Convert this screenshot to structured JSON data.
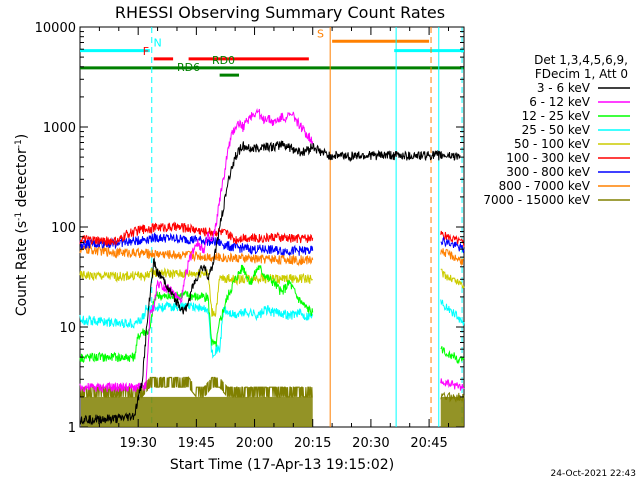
{
  "chart_data": {
    "type": "line",
    "title": "RHESSI Observing Summary Count Rates",
    "xlabel": "Start Time (17-Apr-13 19:15:02)",
    "ylabel_main": "Count Rate (s",
    "ylabel_sup1": "-1",
    "ylabel_mid": " detector",
    "ylabel_sup2": "-1",
    "ylabel_end": ")",
    "yscale": "log",
    "ylim": [
      1,
      10000
    ],
    "xlim_min": [
      0,
      99
    ],
    "ytick_values": [
      1,
      10,
      100,
      1000,
      10000
    ],
    "ytick_labels": [
      "1",
      "10",
      "100",
      "1000",
      "10000"
    ],
    "xtick_values_min": [
      15,
      30,
      45,
      60,
      75,
      90
    ],
    "xtick_labels": [
      "19:30",
      "19:45",
      "20:00",
      "20:15",
      "20:30",
      "20:45"
    ],
    "legend_header": [
      "Det 1,3,4,5,6,9,",
      "FDecim 1, Att 0"
    ],
    "timestamp": "24-Oct-2021 22:43",
    "series": [
      {
        "name": "3 - 6 keV",
        "color": "#000000",
        "x": [
          0,
          10,
          14,
          16,
          17,
          18,
          19,
          20,
          22,
          24,
          26,
          27,
          28,
          29,
          30,
          31,
          32,
          33,
          34,
          35,
          36,
          37,
          38,
          39,
          40,
          41,
          42,
          44,
          46,
          48,
          50,
          52,
          55,
          57,
          58,
          59,
          60,
          62,
          64,
          66,
          68,
          70,
          72,
          73,
          74,
          75,
          76,
          77,
          78,
          79,
          80,
          81,
          82,
          84,
          86,
          88,
          90,
          92,
          94,
          96,
          98
        ],
        "y": [
          1.2,
          1.2,
          1.3,
          2.8,
          8,
          20,
          45,
          35,
          28,
          20,
          16,
          14,
          18,
          25,
          30,
          38,
          40,
          32,
          38,
          60,
          100,
          160,
          260,
          380,
          500,
          580,
          650,
          600,
          620,
          650,
          620,
          680,
          600,
          560,
          580,
          600,
          640,
          560,
          520,
          520,
          520,
          520,
          520,
          520,
          520,
          520,
          520,
          520,
          520,
          520,
          520,
          520,
          520,
          520,
          520,
          520,
          520,
          520,
          520,
          520,
          520
        ],
        "seg": [
          [
            0,
            14
          ],
          [
            14,
            42
          ],
          [
            42,
            61
          ]
        ]
      },
      {
        "name": "6 - 12 keV",
        "color": "#ff00ff",
        "x": [
          0,
          10,
          17,
          18,
          19,
          20,
          22,
          24,
          26,
          28,
          30,
          32,
          33,
          34,
          35,
          36,
          37,
          38,
          39,
          40,
          41,
          42,
          44,
          46,
          47,
          48,
          50,
          52,
          55,
          57,
          58,
          59,
          60
        ],
        "y": [
          2.5,
          2.5,
          2.5,
          13,
          16,
          28,
          25,
          22,
          18,
          45,
          70,
          60,
          80,
          70,
          100,
          190,
          300,
          550,
          800,
          1000,
          1100,
          1000,
          1300,
          1450,
          1150,
          1250,
          1100,
          1250,
          1300,
          1000,
          900,
          800,
          720
        ],
        "seg": [
          [
            0,
            3
          ],
          [
            2,
            33
          ]
        ]
      },
      {
        "name": "12 - 25 keV",
        "color": "#00ff00",
        "x": [
          0,
          10,
          11,
          13,
          14,
          15,
          16,
          17,
          18,
          19,
          20,
          22,
          24,
          26,
          28,
          30,
          33,
          34,
          35,
          36,
          37,
          38,
          40,
          42,
          44,
          46,
          48,
          50,
          52,
          54,
          56,
          58,
          60
        ],
        "y": [
          5,
          5,
          5,
          5,
          5,
          8,
          9,
          9,
          9,
          18,
          21,
          20,
          20,
          21,
          21,
          20,
          20,
          7,
          6.5,
          11,
          15,
          20,
          30,
          40,
          28,
          40,
          32,
          28,
          22,
          28,
          20,
          16,
          14
        ],
        "seg": [
          [
            0,
            33
          ]
        ]
      },
      {
        "name": "25 - 50 keV",
        "color": "#00ffff",
        "x": [
          0,
          10,
          14,
          16,
          17,
          18,
          20,
          22,
          25,
          28,
          30,
          32,
          33,
          34,
          35,
          36,
          37,
          38,
          40,
          42,
          44,
          46,
          48,
          50,
          52,
          54,
          56,
          58,
          60
        ],
        "y": [
          12,
          11,
          11,
          12,
          15,
          15,
          16,
          16,
          16,
          16,
          16,
          15,
          15,
          5.5,
          6,
          6,
          15,
          14,
          13,
          14,
          14,
          13,
          15,
          14,
          14,
          13,
          14,
          13,
          13
        ],
        "seg": [
          [
            0,
            29
          ]
        ]
      },
      {
        "name": "50 - 100 keV",
        "color": "#cccc00",
        "x": [
          0,
          10,
          15,
          17,
          18,
          20,
          24,
          28,
          32,
          33,
          34,
          35,
          36,
          38,
          40,
          44,
          48,
          52,
          56,
          60
        ],
        "y": [
          33,
          32,
          33,
          32,
          35,
          35,
          34,
          34,
          35,
          34,
          14,
          14,
          30,
          31,
          30,
          31,
          31,
          30,
          31,
          30
        ],
        "seg": [
          [
            0,
            20
          ]
        ]
      },
      {
        "name": "100 - 300 keV",
        "color": "#ff0000",
        "x": [
          0,
          5,
          10,
          12,
          16,
          20,
          24,
          28,
          32,
          36,
          38,
          40,
          42,
          44,
          48,
          50,
          52,
          56,
          60
        ],
        "y": [
          75,
          73,
          72,
          85,
          95,
          100,
          100,
          98,
          90,
          90,
          85,
          75,
          80,
          78,
          78,
          80,
          78,
          77,
          78
        ],
        "seg": [
          [
            0,
            19
          ]
        ]
      },
      {
        "name": "300 - 800 keV",
        "color": "#0000ff",
        "x": [
          0,
          5,
          10,
          14,
          18,
          22,
          26,
          30,
          34,
          36,
          38,
          40,
          42,
          44,
          48,
          52,
          56,
          60
        ],
        "y": [
          68,
          68,
          70,
          72,
          78,
          78,
          76,
          75,
          72,
          70,
          65,
          62,
          62,
          60,
          60,
          58,
          58,
          58
        ],
        "seg": [
          [
            0,
            18
          ]
        ]
      },
      {
        "name": "800 - 7000 keV",
        "color": "#ff8000",
        "x": [
          0,
          5,
          10,
          15,
          20,
          25,
          30,
          35,
          40,
          45,
          50,
          55,
          60
        ],
        "y": [
          60,
          58,
          56,
          55,
          54,
          53,
          52,
          50,
          49,
          48,
          48,
          47,
          47
        ],
        "seg": [
          [
            0,
            13
          ]
        ]
      },
      {
        "name": "7000 - 15000 keV",
        "color": "#808000",
        "x": [
          0,
          10,
          14,
          16,
          18,
          20,
          22,
          24,
          26,
          28,
          30,
          32,
          34,
          36,
          38,
          40,
          42,
          44,
          46,
          48,
          50,
          52,
          54,
          56,
          58,
          60
        ],
        "y": [
          2.0,
          2.0,
          2.0,
          2.0,
          2.5,
          2.5,
          2.5,
          2.5,
          2.5,
          2.5,
          2.0,
          2.0,
          2.5,
          2.5,
          2.0,
          2.0,
          2.0,
          2.0,
          2.0,
          2.0,
          2.0,
          2.0,
          2.0,
          2.0,
          2.0,
          2.0
        ],
        "seg": [
          [
            0,
            26
          ]
        ]
      }
    ],
    "post_gap_series": [
      {
        "name": "100 - 300 keV",
        "color": "#ff0000",
        "x": [
          93,
          99
        ],
        "y": [
          85,
          68
        ]
      },
      {
        "name": "300 - 800 keV",
        "color": "#0000ff",
        "x": [
          93,
          99
        ],
        "y": [
          75,
          60
        ]
      },
      {
        "name": "800 - 7000 keV",
        "color": "#ff8000",
        "x": [
          93,
          99
        ],
        "y": [
          58,
          45
        ]
      },
      {
        "name": "50 - 100 keV",
        "color": "#cccc00",
        "x": [
          93,
          99
        ],
        "y": [
          35,
          26
        ]
      },
      {
        "name": "25 - 50 keV",
        "color": "#00ffff",
        "x": [
          93,
          99
        ],
        "y": [
          18,
          11
        ]
      },
      {
        "name": "12 - 25 keV",
        "color": "#00ff00",
        "x": [
          93,
          99
        ],
        "y": [
          6,
          4.5
        ]
      },
      {
        "name": "6 - 12 keV",
        "color": "#ff00ff",
        "x": [
          93,
          99
        ],
        "y": [
          2.8,
          2.5
        ]
      },
      {
        "name": "7000 - 15000 keV",
        "color": "#808000",
        "x": [
          93,
          99
        ],
        "y": [
          2.0,
          2.0
        ]
      }
    ],
    "flag_bars": [
      {
        "label": "N",
        "color": "#00ffff",
        "segments": [
          [
            0,
            18
          ],
          [
            81,
            99
          ]
        ],
        "level": 5800,
        "label_at": 20
      },
      {
        "label": "S",
        "color": "#ff8000",
        "segments": [
          [
            65,
            90
          ]
        ],
        "level": 7200,
        "label_at": 62
      },
      {
        "label": "F",
        "color": "#ff0000",
        "segments": [
          [
            19,
            24
          ],
          [
            28,
            59
          ]
        ],
        "level": 4800,
        "label_at": 17
      },
      {
        "label": "RD0",
        "color": "#008000",
        "segments": [
          [
            0,
            99
          ]
        ],
        "level": 3900,
        "label_at": 37
      },
      {
        "label": "RD6",
        "color": "#008000",
        "segments": [
          [
            36,
            41
          ]
        ],
        "level": 3300,
        "label_at": 28
      }
    ],
    "vertical_markers": [
      {
        "x": 18.5,
        "color": "#00ffff",
        "style": "dashed"
      },
      {
        "x": 64.5,
        "color": "#ff8000",
        "style": "solid"
      },
      {
        "x": 81.5,
        "color": "#00ffff",
        "style": "solid"
      },
      {
        "x": 90.5,
        "color": "#ff8000",
        "style": "dashed"
      },
      {
        "x": 92.5,
        "color": "#00ffff",
        "style": "solid"
      },
      {
        "x": 98.5,
        "color": "#00ffff",
        "style": "dashed"
      }
    ],
    "legend_location": "right"
  }
}
